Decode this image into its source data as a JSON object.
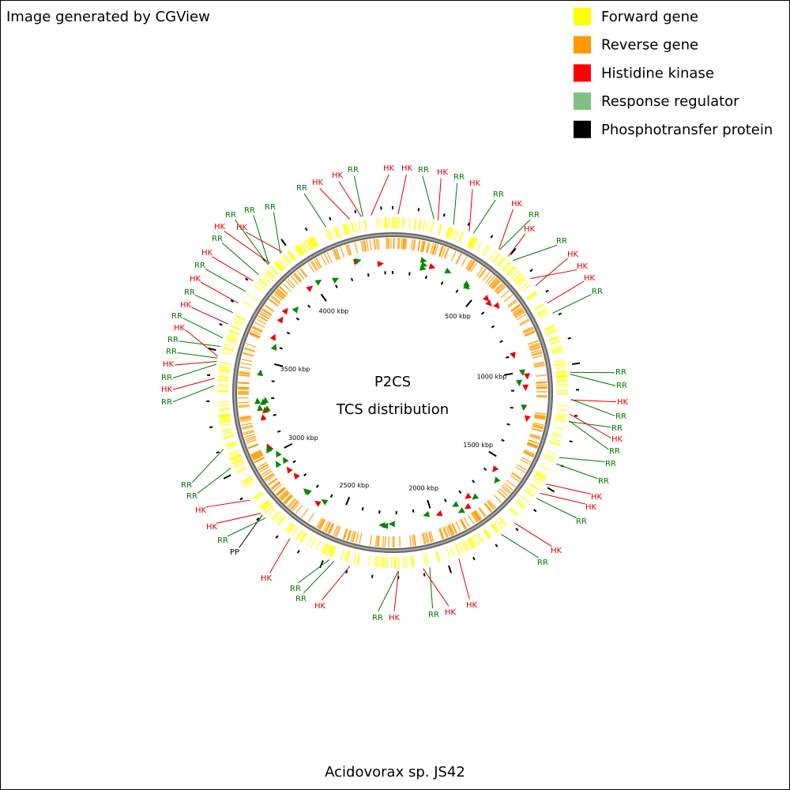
{
  "header": {
    "title": "Image generated by CGView"
  },
  "legend": [
    {
      "label": "Forward gene",
      "color": "#ffff00"
    },
    {
      "label": "Reverse gene",
      "color": "#ff9900"
    },
    {
      "label": "Histidine kinase",
      "color": "#ff0000"
    },
    {
      "label": "Response regulator",
      "color": "#80c080"
    },
    {
      "label": "Phosphotransfer protein",
      "color": "#000000"
    }
  ],
  "center": {
    "title": "P2CS",
    "subtitle": "TCS distribution"
  },
  "ticks": [
    "500 kbp",
    "1000 kbp",
    "1500 kbp",
    "2000 kbp",
    "2500 kbp",
    "3000 kbp",
    "3500 kbp",
    "4000 kbp"
  ],
  "features": [
    {
      "label": "HK",
      "color": "#dd0000"
    },
    {
      "label": "RR",
      "color": "#007700"
    },
    {
      "label": "HK",
      "color": "#dd0000"
    },
    {
      "label": "HK",
      "color": "#dd0000"
    },
    {
      "label": "RR",
      "color": "#007700"
    },
    {
      "label": "HK",
      "color": "#dd0000"
    },
    {
      "label": "RR",
      "color": "#007700"
    },
    {
      "label": "HK",
      "color": "#dd0000"
    },
    {
      "label": "RR",
      "color": "#007700"
    },
    {
      "label": "HK",
      "color": "#dd0000"
    },
    {
      "label": "RR",
      "color": "#007700"
    },
    {
      "label": "HK",
      "color": "#dd0000"
    },
    {
      "label": "RR",
      "color": "#007700"
    },
    {
      "label": "HK",
      "color": "#dd0000"
    },
    {
      "label": "HK",
      "color": "#dd0000"
    },
    {
      "label": "HK",
      "color": "#dd0000"
    },
    {
      "label": "RR",
      "color": "#007700"
    },
    {
      "label": "RR",
      "color": "#007700"
    },
    {
      "label": "RR",
      "color": "#007700"
    },
    {
      "label": "HK",
      "color": "#dd0000"
    },
    {
      "label": "RR",
      "color": "#007700"
    },
    {
      "label": "RR",
      "color": "#007700"
    },
    {
      "label": "HK",
      "color": "#dd0000"
    },
    {
      "label": "RR",
      "color": "#007700"
    },
    {
      "label": "RR",
      "color": "#007700"
    },
    {
      "label": "RR",
      "color": "#007700"
    },
    {
      "label": "HK",
      "color": "#dd0000"
    },
    {
      "label": "HK",
      "color": "#dd0000"
    },
    {
      "label": "RR",
      "color": "#007700"
    },
    {
      "label": "HK",
      "color": "#dd0000"
    },
    {
      "label": "RR",
      "color": "#007700"
    },
    {
      "label": "HK",
      "color": "#dd0000"
    },
    {
      "label": "HK",
      "color": "#dd0000"
    },
    {
      "label": "RR",
      "color": "#007700"
    },
    {
      "label": "HK",
      "color": "#dd0000"
    },
    {
      "label": "RR",
      "color": "#007700"
    },
    {
      "label": "HK",
      "color": "#dd0000"
    },
    {
      "label": "RR",
      "color": "#007700"
    },
    {
      "label": "RR",
      "color": "#007700"
    },
    {
      "label": "HK",
      "color": "#dd0000"
    },
    {
      "label": "PP",
      "color": "#000000"
    },
    {
      "label": "RR",
      "color": "#007700"
    },
    {
      "label": "HK",
      "color": "#dd0000"
    },
    {
      "label": "HK",
      "color": "#dd0000"
    },
    {
      "label": "RR",
      "color": "#007700"
    },
    {
      "label": "RR",
      "color": "#007700"
    },
    {
      "label": "RR",
      "color": "#007700"
    },
    {
      "label": "HK",
      "color": "#dd0000"
    },
    {
      "label": "RR",
      "color": "#007700"
    },
    {
      "label": "HK",
      "color": "#dd0000"
    },
    {
      "label": "RR",
      "color": "#007700"
    },
    {
      "label": "RR",
      "color": "#007700"
    },
    {
      "label": "HK",
      "color": "#dd0000"
    },
    {
      "label": "RR",
      "color": "#007700"
    },
    {
      "label": "HK",
      "color": "#dd0000"
    },
    {
      "label": "RR",
      "color": "#007700"
    },
    {
      "label": "HK",
      "color": "#dd0000"
    },
    {
      "label": "RR",
      "color": "#007700"
    },
    {
      "label": "HK",
      "color": "#dd0000"
    },
    {
      "label": "RR",
      "color": "#007700"
    },
    {
      "label": "HK",
      "color": "#dd0000"
    },
    {
      "label": "RR",
      "color": "#007700"
    },
    {
      "label": "HK",
      "color": "#dd0000"
    },
    {
      "label": "RR",
      "color": "#007700"
    },
    {
      "label": "RR",
      "color": "#007700"
    },
    {
      "label": "RR",
      "color": "#007700"
    },
    {
      "label": "HK",
      "color": "#dd0000"
    }
  ],
  "footer": {
    "title": "Acidovorax sp. JS42"
  }
}
